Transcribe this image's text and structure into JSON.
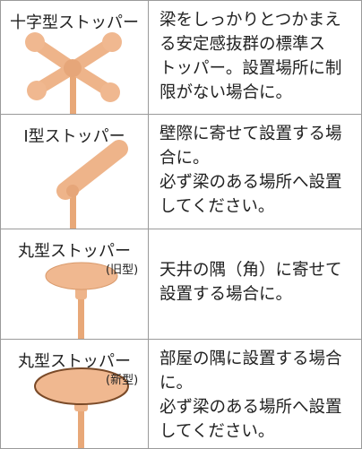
{
  "rows": [
    {
      "title": "十字型ストッパー",
      "description": [
        "梁をしっかりとつかまえ",
        "る安定感抜群の標準ス",
        "トッパー。設置場所に制",
        "限がない場合に。"
      ]
    },
    {
      "title": "I型ストッパー",
      "description": [
        "壁際に寄せて設置する場",
        "合に。",
        "必ず梁のある場所へ設置",
        "してください。"
      ]
    },
    {
      "title": "丸型ストッパー",
      "note": "(旧型)",
      "description": [
        "天井の隅（角）に寄せて",
        "設置する場合に。"
      ]
    },
    {
      "title": "丸型ストッパー",
      "note": "(新型)",
      "description": [
        "部屋の隅に設置する場合",
        "に。",
        "必ず梁のある場所へ設置",
        "してください。"
      ]
    }
  ]
}
